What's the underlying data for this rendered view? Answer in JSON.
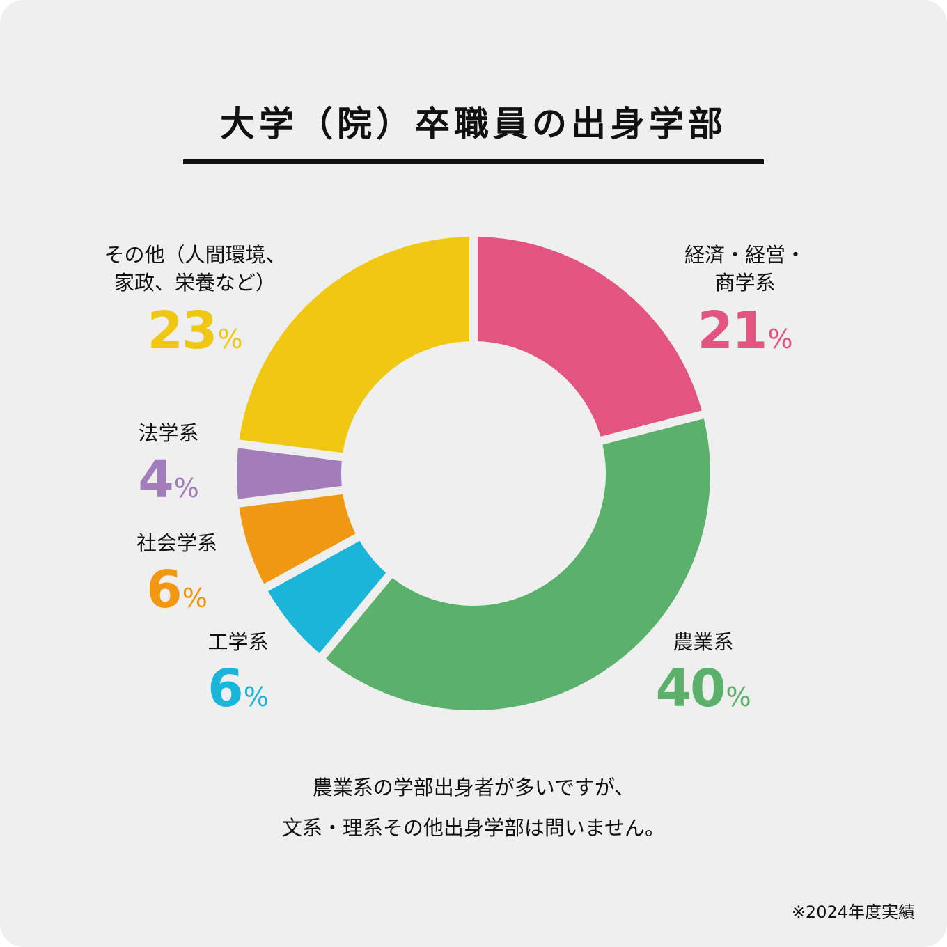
{
  "title": "大学（院）卒職員の出身学部",
  "chart_data": {
    "type": "pie",
    "unit": "%",
    "slices": [
      {
        "label_lines": [
          "経済・経営・",
          "商学系"
        ],
        "value": 21,
        "color": "#e35480"
      },
      {
        "label_lines": [
          "農業系"
        ],
        "value": 40,
        "color": "#5bb16c"
      },
      {
        "label_lines": [
          "工学系"
        ],
        "value": 6,
        "color": "#1ab5d8"
      },
      {
        "label_lines": [
          "社会学系"
        ],
        "value": 6,
        "color": "#f09812"
      },
      {
        "label_lines": [
          "法学系"
        ],
        "value": 4,
        "color": "#a37cbb"
      },
      {
        "label_lines": [
          "その他（人間環境、",
          "家政、栄養など）"
        ],
        "value": 23,
        "color": "#f0c814"
      }
    ]
  },
  "note_lines": [
    "農業系の学部出身者が多いですが、",
    "文系・理系その他出身学部は問いません。"
  ],
  "footnote": "※2024年度実績"
}
